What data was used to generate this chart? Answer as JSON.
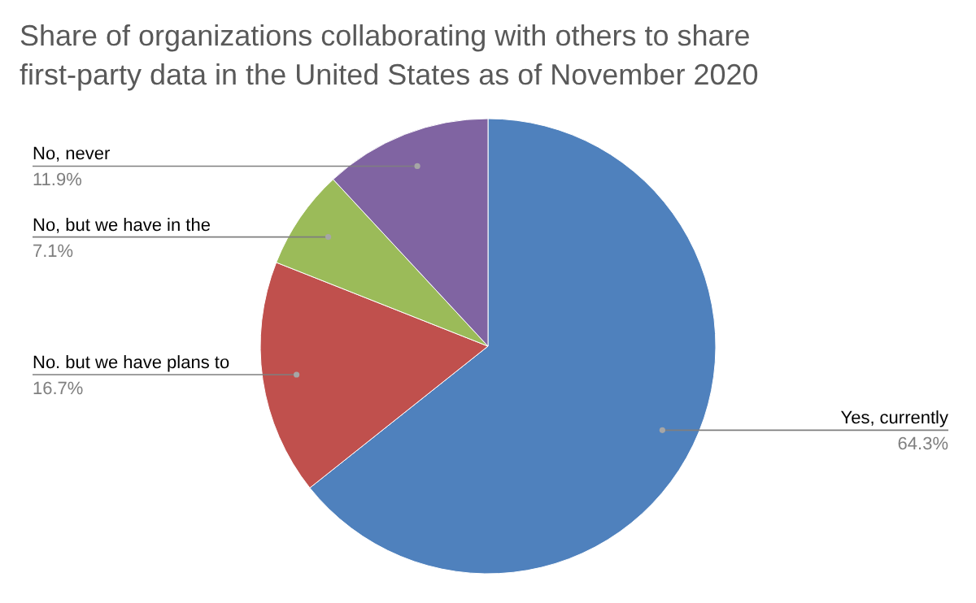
{
  "chart_data": {
    "type": "pie",
    "title": "Share of organizations collaborating with others to share first-party data in the United States as of November 2020",
    "categories": [
      "Yes, currently",
      "No. but we have plans to",
      "No, but we have in the",
      "No, never"
    ],
    "values": [
      64.3,
      16.7,
      7.1,
      11.9
    ],
    "colors": [
      "#4f81bd",
      "#c0504d",
      "#9bbb59",
      "#8064a2"
    ],
    "value_labels": [
      "64.3%",
      "16.7%",
      "7.1%",
      "11.9%"
    ],
    "legend": false
  }
}
